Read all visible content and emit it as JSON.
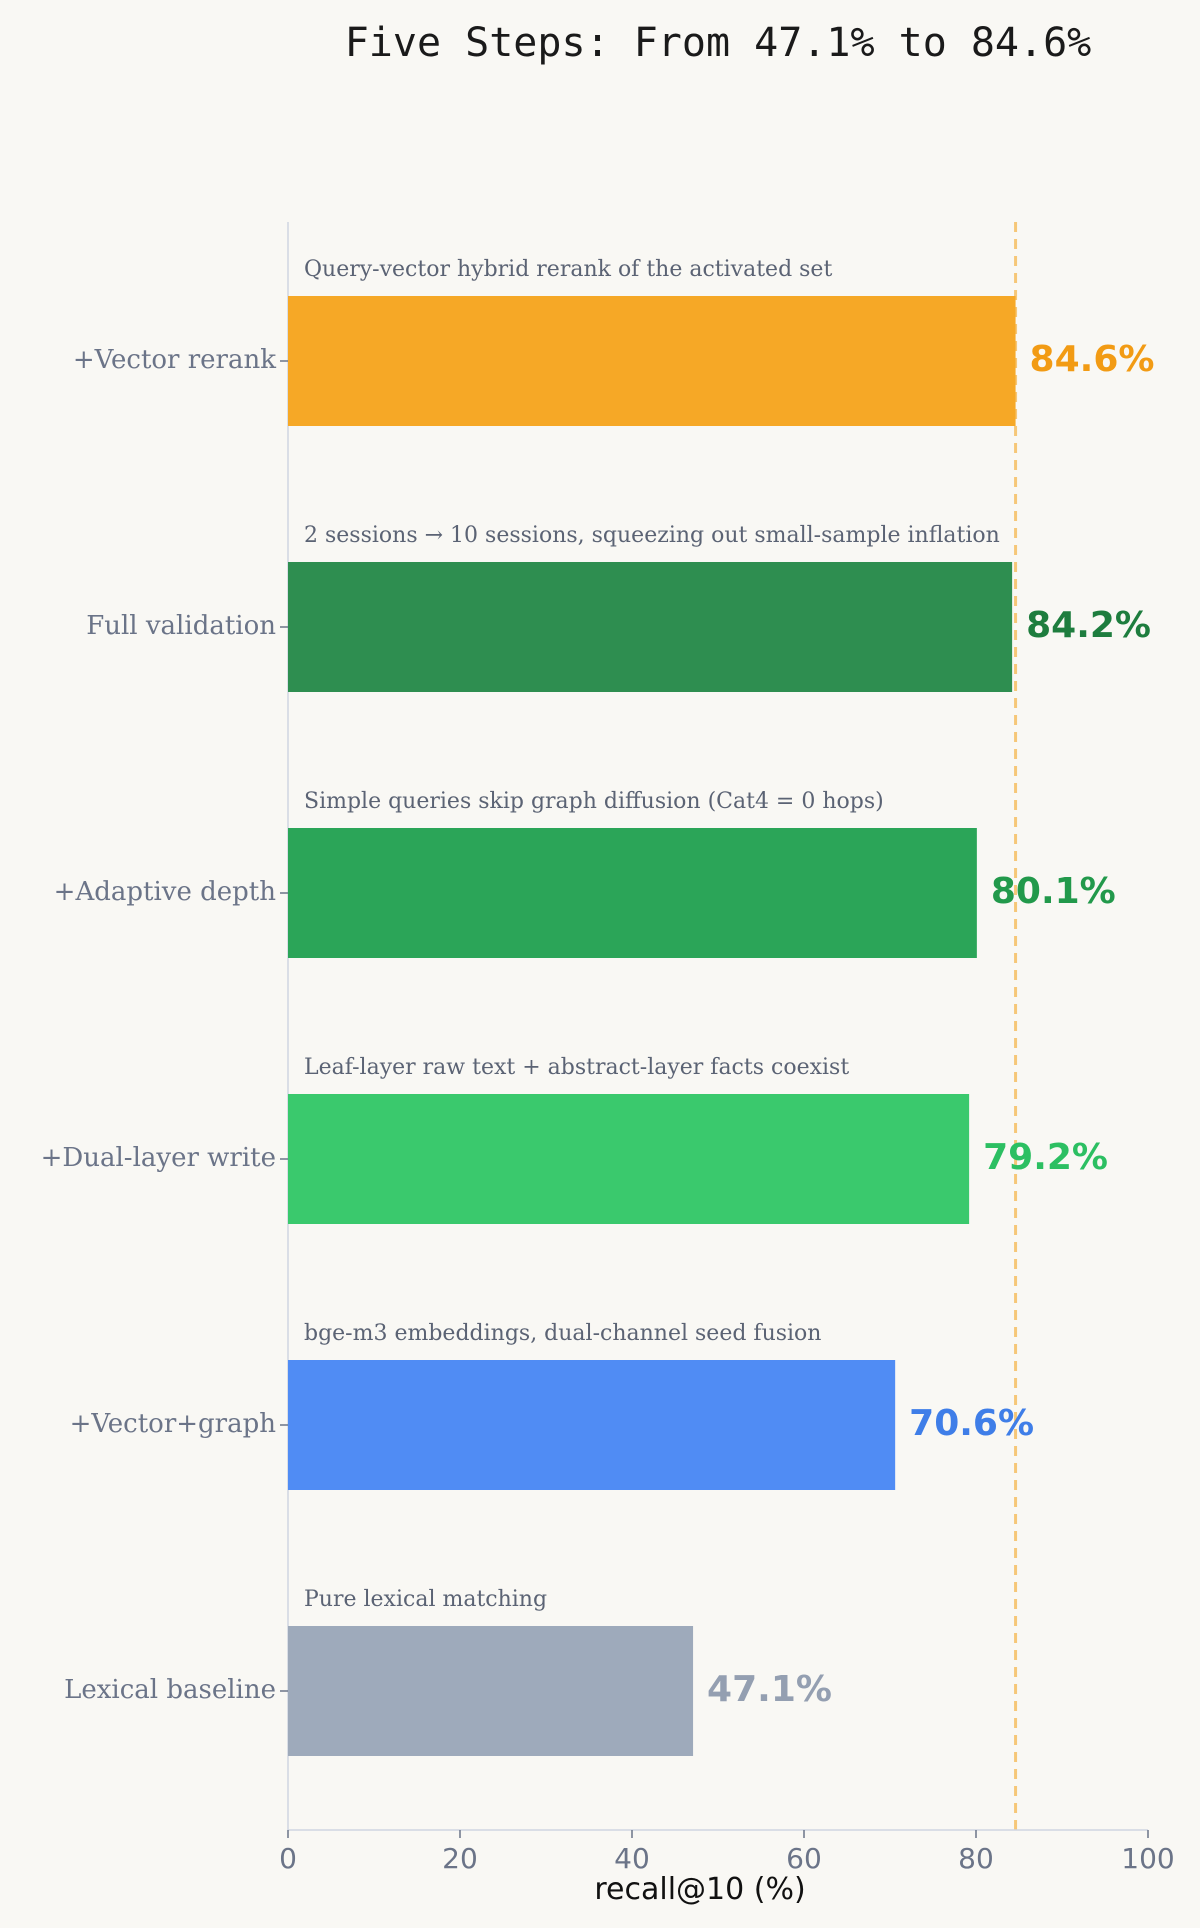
{
  "chart_data": {
    "type": "bar",
    "orientation": "horizontal",
    "title": "Five Steps: From 47.1% to 84.6%",
    "xlabel": "recall@10 (%)",
    "ylabel": "",
    "xlim": [
      0,
      100
    ],
    "xticks": [
      "0",
      "20",
      "40",
      "60",
      "80",
      "100"
    ],
    "grid": false,
    "reference_line": {
      "value": 84.6,
      "color": "#f6c778",
      "style": "dashed"
    },
    "categories": [
      "+Vector rerank",
      "Full validation",
      "+Adaptive depth",
      "+Dual-layer write",
      "+Vector+graph",
      "Lexical baseline"
    ],
    "values": [
      84.6,
      84.2,
      80.1,
      79.2,
      70.6,
      47.1
    ],
    "value_labels": [
      "84.6%",
      "84.2%",
      "80.1%",
      "79.2%",
      "70.6%",
      "47.1%"
    ],
    "annotations": [
      "Query-vector hybrid rerank of the activated set",
      "2 sessions → 10 sessions, squeezing out small-sample inflation",
      "Simple queries skip graph diffusion (Cat4 = 0 hops)",
      "Leaf-layer raw text + abstract-layer facts coexist",
      "bge-m3 embeddings, dual-channel seed fusion",
      "Pure lexical matching"
    ],
    "bar_colors": [
      "#f6a826",
      "#2e8e50",
      "#2ba558",
      "#3ac96d",
      "#508cf4",
      "#9eaabb"
    ],
    "label_colors": [
      "#f29b14",
      "#1e7d3e",
      "#22994b",
      "#2cbf62",
      "#3f7ee8",
      "#949fb1"
    ]
  }
}
